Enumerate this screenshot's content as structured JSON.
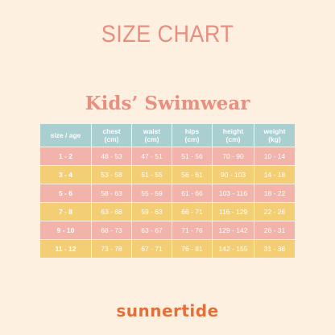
{
  "title": "SIZE CHART",
  "subtitle": "Kids’ Swimwear",
  "table": {
    "headers": [
      {
        "label": "size / age",
        "unit": ""
      },
      {
        "label": "chest",
        "unit": "(cm)"
      },
      {
        "label": "waist",
        "unit": "(cm)"
      },
      {
        "label": "hips",
        "unit": "(cm)"
      },
      {
        "label": "height",
        "unit": "(cm)"
      },
      {
        "label": "weight",
        "unit": "(kg)"
      }
    ],
    "rows": [
      [
        "1 - 2",
        "48 - 53",
        "47 - 51",
        "51 - 56",
        "70 - 90",
        "10 - 14"
      ],
      [
        "3 - 4",
        "53 - 58",
        "51 - 55",
        "56 - 61",
        "90 - 103",
        "14 - 18"
      ],
      [
        "5 - 6",
        "58 - 63",
        "55 - 59",
        "61 - 66",
        "103 - 116",
        "18 - 22"
      ],
      [
        "7 - 8",
        "63 - 68",
        "59 - 63",
        "66 - 71",
        "116 - 129",
        "22 - 26"
      ],
      [
        "9 - 10",
        "68 - 73",
        "63 - 67",
        "71 - 76",
        "129 - 142",
        "26 - 31"
      ],
      [
        "11 - 12",
        "73 - 78",
        "67 - 71",
        "76 - 81",
        "142 - 155",
        "31 - 36"
      ]
    ]
  },
  "brand": "sunnertide",
  "colors": {
    "background": "#FDF0E1",
    "title": "#E98F80",
    "header": "#A9CFD1",
    "row_pink": "#F2B3AA",
    "row_yellow": "#F4CE74",
    "brand": "#E2703A"
  }
}
